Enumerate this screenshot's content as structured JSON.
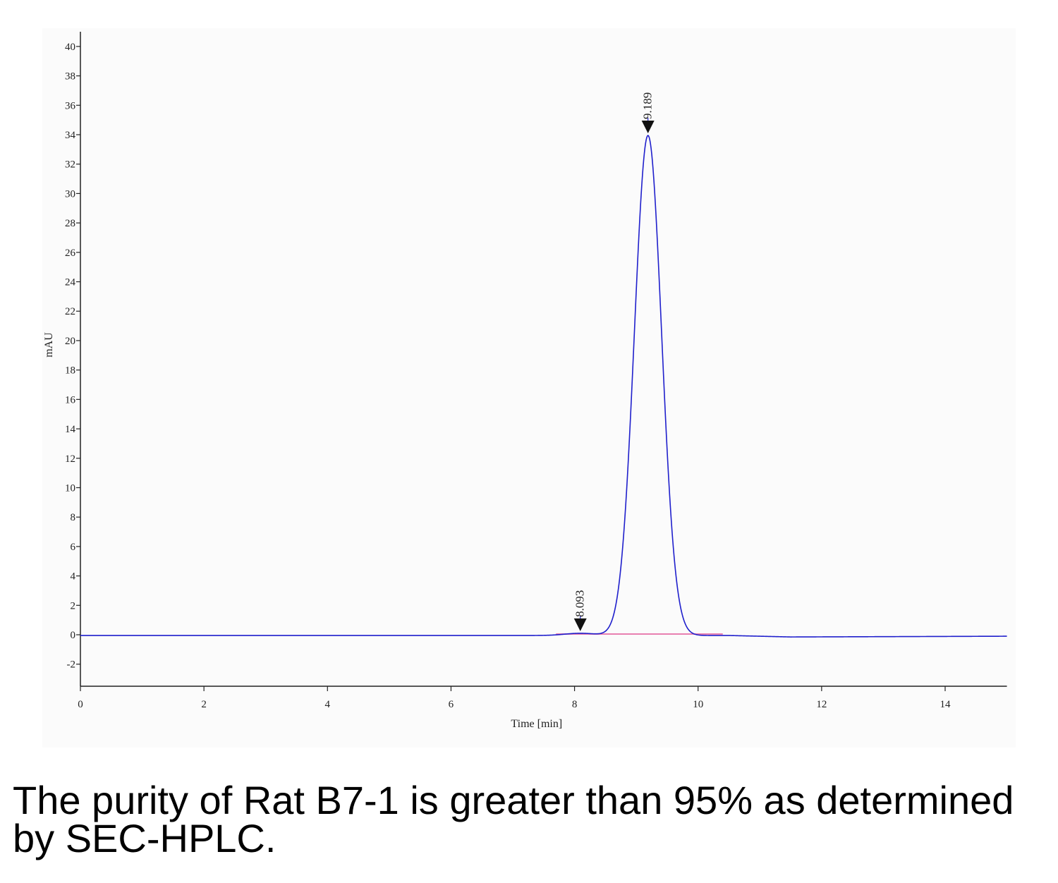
{
  "chart_data": {
    "type": "line",
    "xlabel": "Time [min]",
    "ylabel": "mAU",
    "xlim": [
      0,
      15
    ],
    "ylim": [
      -3.5,
      41
    ],
    "x_ticks": [
      0,
      2,
      4,
      6,
      8,
      10,
      12,
      14
    ],
    "y_ticks": [
      -2,
      0,
      2,
      4,
      6,
      8,
      10,
      12,
      14,
      16,
      18,
      20,
      22,
      24,
      26,
      28,
      30,
      32,
      34,
      36,
      38,
      40
    ],
    "grid": false,
    "series": [
      {
        "color": "#1f1fcc",
        "peaks": [
          {
            "rt": 8.093,
            "height": 0.15,
            "width": 0.25
          },
          {
            "rt": 9.189,
            "height": 34.0,
            "width": 0.22
          }
        ],
        "baseline": [
          [
            0,
            -0.05
          ],
          [
            10.5,
            -0.05
          ],
          [
            11.5,
            -0.15
          ],
          [
            15,
            -0.1
          ]
        ]
      }
    ],
    "baseline_color": "#e87fb0",
    "baseline_segment": [
      7.7,
      10.4
    ],
    "peak_labels": [
      {
        "x": 8.093,
        "y": 0.15,
        "text": "8.093"
      },
      {
        "x": 9.189,
        "y": 34.0,
        "text": "9.189"
      }
    ]
  },
  "caption": "The purity of Rat B7-1 is greater than 95% as determined by SEC-HPLC."
}
